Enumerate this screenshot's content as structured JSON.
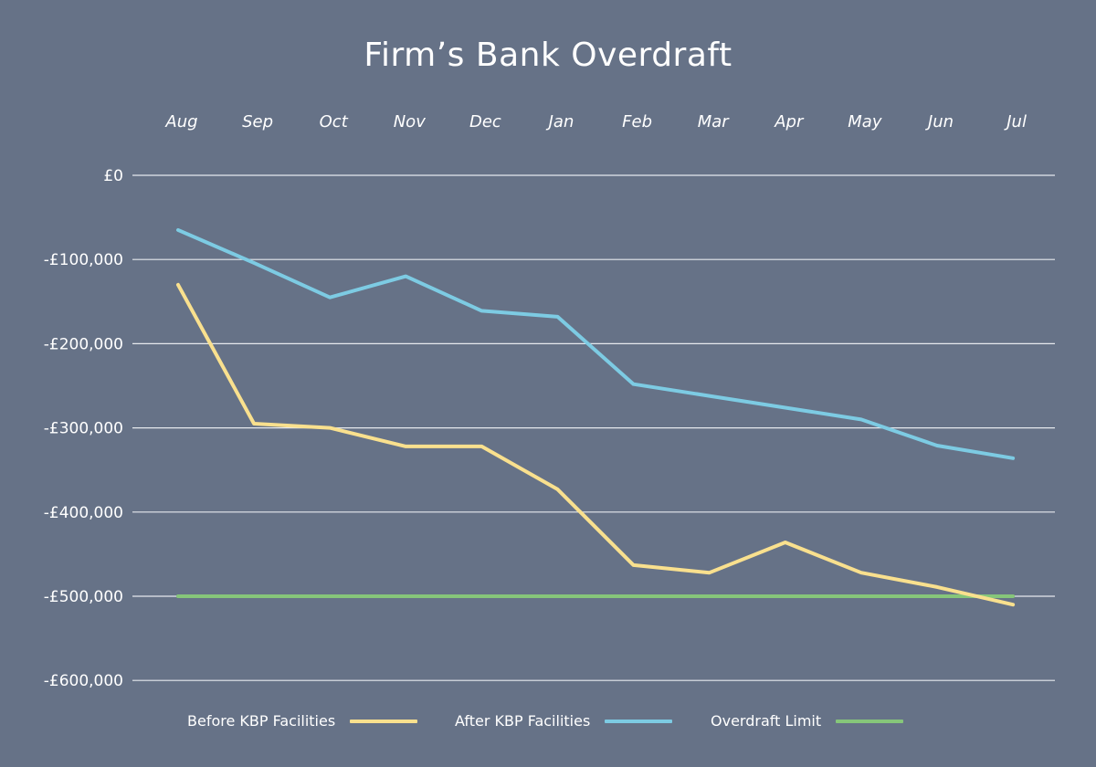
{
  "chart_data": {
    "type": "line",
    "title": "Firm’s Bank Overdraft",
    "categories": [
      "Aug",
      "Sep",
      "Oct",
      "Nov",
      "Dec",
      "Jan",
      "Feb",
      "Mar",
      "Apr",
      "May",
      "Jun",
      "Jul"
    ],
    "y_ticks": [
      "£0",
      "-£100,000",
      "-£200,000",
      "-£300,000",
      "-£400,000",
      "-£500,000",
      "-£600,000"
    ],
    "ylim": [
      -600000,
      0
    ],
    "grid": true,
    "legend_position": "bottom",
    "series": [
      {
        "name": "Before KBP Facilities",
        "color": "#f9e08e",
        "values": [
          -130000,
          -295000,
          -300000,
          -322000,
          -322000,
          -373000,
          -463000,
          -472000,
          -436000,
          -472000,
          -489000,
          -510000
        ]
      },
      {
        "name": "After KBP Facilities",
        "color": "#7dcbe3",
        "values": [
          -65000,
          -104000,
          -145000,
          -120000,
          -161000,
          -168000,
          -248000,
          -262000,
          -276000,
          -290000,
          -321000,
          -336000
        ]
      },
      {
        "name": "Overdraft Limit",
        "color": "#86c67a",
        "values": [
          -500000,
          -500000,
          -500000,
          -500000,
          -500000,
          -500000,
          -500000,
          -500000,
          -500000,
          -500000,
          -500000,
          -500000
        ]
      }
    ]
  }
}
